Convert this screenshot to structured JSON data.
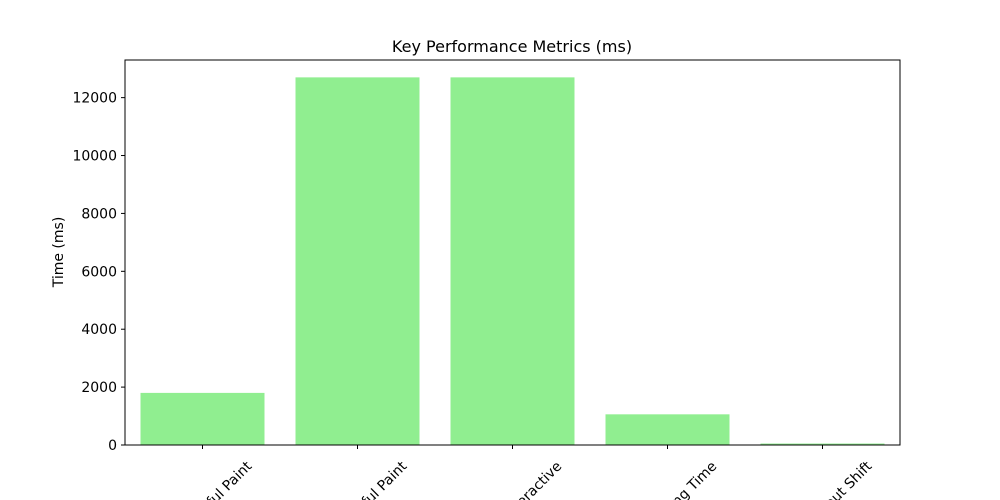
{
  "chart_data": {
    "type": "bar",
    "title": "Key Performance Metrics (ms)",
    "xlabel": "",
    "ylabel": "Time (ms)",
    "categories": [
      "First Contentful Paint",
      "Largest Contentful Paint",
      "Time to Interactive",
      "Total Blocking Time",
      "Cumulative Layout Shift"
    ],
    "visible_tick_labels": [
      "ful Paint",
      "ful Paint",
      "teractive",
      "ing Time",
      "out Shift"
    ],
    "values": [
      1800,
      12700,
      12700,
      1060,
      50
    ],
    "ylim": [
      0,
      13300
    ],
    "yticks": [
      0,
      2000,
      4000,
      6000,
      8000,
      10000,
      12000
    ],
    "ytick_labels": [
      "0",
      "2000",
      "4000",
      "6000",
      "8000",
      "10000",
      "12000"
    ],
    "bar_color": "#90ee90",
    "grid": false,
    "legend": "none"
  }
}
